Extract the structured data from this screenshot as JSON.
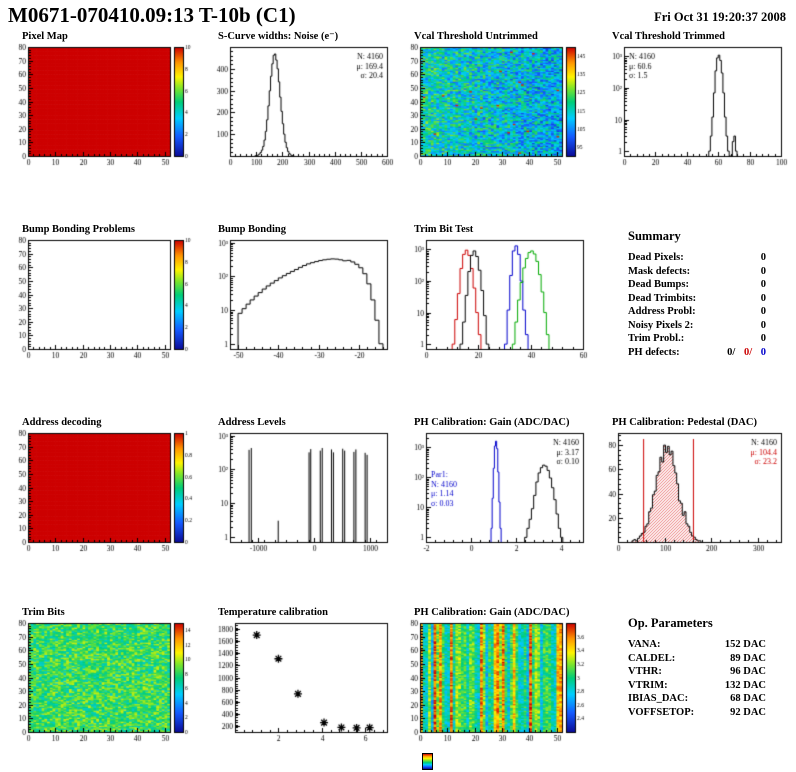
{
  "header": {
    "title": "M0671-070410.09:13 T-10b (C1)",
    "date": "Fri Oct 31 19:20:37 2008"
  },
  "summary": {
    "heading": "Summary",
    "rows": [
      {
        "label": "Dead Pixels:",
        "value": "0"
      },
      {
        "label": "Mask defects:",
        "value": "0"
      },
      {
        "label": "Dead Bumps:",
        "value": "0"
      },
      {
        "label": "Dead Trimbits:",
        "value": "0"
      },
      {
        "label": "Address Probl:",
        "value": "0"
      },
      {
        "label": "Noisy Pixels 2:",
        "value": "0"
      },
      {
        "label": "Trim Probl.:",
        "value": "0"
      }
    ],
    "ph_defects": {
      "label": "PH defects:",
      "values": [
        {
          "text": "0/",
          "color": "#000000"
        },
        {
          "text": "0/",
          "color": "#cc0000"
        },
        {
          "text": "0",
          "color": "#0000cc"
        }
      ]
    }
  },
  "op_parameters": {
    "heading": "Op. Parameters",
    "rows": [
      {
        "label": "VANA:",
        "value": "152 DAC"
      },
      {
        "label": "CALDEL:",
        "value": "89 DAC"
      },
      {
        "label": "VTHR:",
        "value": "96 DAC"
      },
      {
        "label": "VTRIM:",
        "value": "132 DAC"
      },
      {
        "label": "IBIAS_DAC:",
        "value": "68 DAC"
      },
      {
        "label": "VOFFSETOP:",
        "value": "92 DAC"
      }
    ]
  },
  "chart_data": [
    {
      "title": "Pixel Map",
      "type": "heatmap",
      "xlim": [
        0,
        52
      ],
      "xticks": [
        0,
        10,
        20,
        30,
        40,
        50
      ],
      "ylim": [
        0,
        80
      ],
      "yticks": [
        0,
        10,
        20,
        30,
        40,
        50,
        60,
        70,
        80
      ],
      "zlim": [
        0,
        10
      ],
      "zticks": [
        0,
        2,
        4,
        6,
        8,
        10
      ],
      "nx": 52,
      "ny": 80,
      "colorbar": true,
      "pattern": {
        "kind": "uniform",
        "value": 10
      }
    },
    {
      "title": "S-Curve widths: Noise (e⁻)",
      "type": "hist",
      "xlim": [
        0,
        600
      ],
      "xticks": [
        0,
        100,
        200,
        300,
        400,
        500,
        600
      ],
      "ylim": [
        0,
        500
      ],
      "yticks": [
        100,
        200,
        300,
        400
      ],
      "x0": 95,
      "step": 5,
      "counts": [
        1,
        2,
        4,
        9,
        16,
        27,
        44,
        73,
        113,
        166,
        230,
        299,
        366,
        423,
        462,
        468,
        440,
        400,
        340,
        270,
        205,
        148,
        100,
        63,
        38,
        21,
        11,
        5,
        2,
        1
      ],
      "stats": [
        {
          "pos": "tr",
          "lines": [
            "N: 4160",
            "μ: 169.4",
            "σ: 20.4"
          ],
          "colors": [
            "#000000",
            "#000000",
            "#000000"
          ]
        }
      ]
    },
    {
      "title": "Vcal Threshold Untrimmed",
      "type": "heatmap",
      "xlim": [
        0,
        52
      ],
      "xticks": [
        0,
        10,
        20,
        30,
        40,
        50
      ],
      "ylim": [
        0,
        80
      ],
      "yticks": [
        0,
        10,
        20,
        30,
        40,
        50,
        60,
        70,
        80
      ],
      "zlim": [
        90,
        150
      ],
      "zticks": [
        95,
        105,
        115,
        125,
        135,
        145
      ],
      "nx": 52,
      "ny": 80,
      "colorbar": true,
      "pattern": {
        "kind": "noise",
        "mean": 113,
        "spread": 13,
        "xgrad": -8,
        "outlier_prob": 0.004,
        "outlier_value": 148,
        "seed": 7
      }
    },
    {
      "title": "Vcal Threshold Trimmed",
      "type": "hist",
      "logy": true,
      "xlim": [
        0,
        100
      ],
      "xticks": [
        0,
        20,
        40,
        60,
        80,
        100
      ],
      "ylim": [
        0.7,
        2000
      ],
      "x0": 54,
      "step": 1,
      "counts": [
        1,
        3,
        12,
        70,
        350,
        900,
        1100,
        750,
        300,
        70,
        12,
        3,
        1,
        0,
        0,
        2,
        3,
        1
      ],
      "stats": [
        {
          "pos": "tl",
          "lines": [
            "N: 4160",
            "μ: 60.6",
            "σ: 1.5"
          ],
          "colors": [
            "#000000",
            "#000000",
            "#000000"
          ]
        }
      ]
    },
    {
      "title": "Bump Bonding Problems",
      "type": "heatmap",
      "xlim": [
        0,
        52
      ],
      "xticks": [
        0,
        10,
        20,
        30,
        40,
        50
      ],
      "ylim": [
        0,
        80
      ],
      "yticks": [
        0,
        10,
        20,
        30,
        40,
        50,
        60,
        70,
        80
      ],
      "zlim": [
        0,
        10
      ],
      "zticks": [
        0,
        2,
        4,
        6,
        8,
        10
      ],
      "nx": 52,
      "ny": 80,
      "colorbar": true,
      "pattern": {
        "kind": "empty"
      }
    },
    {
      "title": "Bump Bonding",
      "type": "hist",
      "logy": true,
      "xlim": [
        -52,
        -13
      ],
      "xticks": [
        -50,
        -40,
        -30,
        -20
      ],
      "ylim": [
        0.7,
        1200
      ],
      "x0": -50,
      "step": 1,
      "counts": [
        8,
        11,
        15,
        20,
        26,
        33,
        42,
        52,
        63,
        75,
        90,
        105,
        122,
        140,
        160,
        185,
        210,
        235,
        255,
        275,
        295,
        310,
        322,
        330,
        325,
        310,
        290,
        298,
        268,
        228,
        180,
        120,
        60,
        20,
        5,
        1
      ]
    },
    {
      "title": "Trim Bit Test",
      "type": "multihist",
      "logy": true,
      "xlim": [
        0,
        60
      ],
      "xticks": [
        0,
        20,
        40,
        60
      ],
      "ylim": [
        0.7,
        2000
      ],
      "series": [
        {
          "color": "#cc0000",
          "x0": 10,
          "step": 1,
          "counts": [
            1,
            6,
            40,
            250,
            700,
            950,
            650,
            250,
            60,
            10,
            2
          ]
        },
        {
          "color": "#000000",
          "x0": 13,
          "step": 1,
          "counts": [
            1,
            5,
            35,
            200,
            650,
            900,
            600,
            220,
            50,
            8,
            1
          ]
        },
        {
          "color": "#0000cc",
          "x0": 30,
          "step": 1,
          "counts": [
            1,
            12,
            150,
            900,
            1300,
            700,
            100,
            12,
            2
          ]
        },
        {
          "color": "#00aa00",
          "x0": 33,
          "step": 1,
          "counts": [
            1,
            5,
            25,
            90,
            260,
            520,
            800,
            900,
            720,
            420,
            160,
            45,
            10,
            2
          ]
        }
      ]
    },
    {
      "title": "Address decoding",
      "type": "heatmap",
      "xlim": [
        0,
        52
      ],
      "xticks": [
        0,
        10,
        20,
        30,
        40,
        50
      ],
      "ylim": [
        0,
        80
      ],
      "yticks": [
        0,
        10,
        20,
        30,
        40,
        50,
        60,
        70,
        80
      ],
      "zlim": [
        0,
        1
      ],
      "zticks": [
        0,
        0.2,
        0.4,
        0.6,
        0.8,
        1
      ],
      "nx": 52,
      "ny": 80,
      "colorbar": true,
      "pattern": {
        "kind": "uniform",
        "value": 1
      }
    },
    {
      "title": "Address Levels",
      "type": "spikes",
      "logy": true,
      "xlim": [
        -1500,
        1300
      ],
      "xticks": [
        -1000,
        0,
        1000
      ],
      "ylim": [
        0.7,
        1200
      ],
      "spikes": [
        [
          -1160,
          380
        ],
        [
          -1120,
          430
        ],
        [
          -640,
          3
        ],
        [
          -90,
          320
        ],
        [
          -60,
          400
        ],
        [
          110,
          360
        ],
        [
          145,
          430
        ],
        [
          310,
          390
        ],
        [
          345,
          320
        ],
        [
          510,
          410
        ],
        [
          545,
          360
        ],
        [
          710,
          330
        ],
        [
          745,
          390
        ],
        [
          910,
          310
        ],
        [
          945,
          270
        ]
      ]
    },
    {
      "title": "PH Calibration: Gain (ADC/DAC)",
      "type": "multihist",
      "logy": true,
      "xlim": [
        -2,
        5
      ],
      "xticks": [
        -2,
        0,
        2,
        4
      ],
      "ylim": [
        0.7,
        3000
      ],
      "series": [
        {
          "color": "#0000cc",
          "x0": 0.9,
          "step": 0.05,
          "counts": [
            2,
            20,
            200,
            1100,
            1600,
            900,
            150,
            15,
            2
          ]
        },
        {
          "color": "#000000",
          "x0": 2.4,
          "step": 0.1,
          "counts": [
            1,
            2,
            4,
            9,
            25,
            70,
            140,
            210,
            255,
            235,
            170,
            95,
            45,
            18,
            6,
            2,
            1
          ]
        }
      ],
      "stats": [
        {
          "pos": "tr",
          "lines": [
            "N: 4160",
            "μ: 3.17",
            "σ: 0.10"
          ],
          "colors": [
            "#000000",
            "#000000",
            "#000000"
          ]
        },
        {
          "pos": "ml",
          "lines": [
            "Par1:",
            "N: 4160",
            "μ: 1.14",
            "σ: 0.03"
          ],
          "colors": [
            "#0000cc",
            "#0000cc",
            "#0000cc",
            "#0000cc"
          ]
        }
      ]
    },
    {
      "title": "PH Calibration: Pedestal (DAC)",
      "type": "hist",
      "xlim": [
        0,
        350
      ],
      "xticks": [
        0,
        100,
        200,
        300
      ],
      "ylim": [
        0,
        90
      ],
      "yticks": [
        20,
        40,
        60,
        80
      ],
      "x0": 30,
      "step": 4,
      "fill": "red-hatch",
      "counts": [
        1,
        2,
        1,
        3,
        5,
        7,
        8,
        13,
        15,
        25,
        28,
        39,
        42,
        55,
        58,
        70,
        66,
        80,
        74,
        79,
        72,
        75,
        63,
        57,
        48,
        34,
        32,
        22,
        25,
        15,
        13,
        8,
        5,
        4,
        2,
        1,
        1
      ],
      "vlines": [
        {
          "x": 55,
          "color": "#cc0000"
        },
        {
          "x": 162,
          "color": "#cc0000"
        }
      ],
      "stats": [
        {
          "pos": "tr",
          "lines": [
            "N: 4160",
            "μ: 104.4",
            "σ: 23.2"
          ],
          "colors": [
            "#000000",
            "#cc0000",
            "#cc0000"
          ]
        }
      ]
    },
    {
      "title": "Trim Bits",
      "type": "heatmap",
      "xlim": [
        0,
        52
      ],
      "xticks": [
        0,
        10,
        20,
        30,
        40,
        50
      ],
      "ylim": [
        0,
        80
      ],
      "yticks": [
        0,
        10,
        20,
        30,
        40,
        50,
        60,
        70,
        80
      ],
      "zlim": [
        0,
        15
      ],
      "zticks": [
        0,
        2,
        4,
        6,
        8,
        10,
        12,
        14
      ],
      "nx": 52,
      "ny": 80,
      "colorbar": true,
      "pattern": {
        "kind": "noise",
        "mean": 8.2,
        "spread": 2.2,
        "seed": 11
      }
    },
    {
      "title": "Temperature calibration",
      "type": "scatter",
      "xlim": [
        0,
        7
      ],
      "xticks": [
        2,
        4,
        6
      ],
      "ylim": [
        100,
        1900
      ],
      "yticks": [
        200,
        400,
        600,
        800,
        1000,
        1200,
        1400,
        1600,
        1800
      ],
      "marker": "asterisk",
      "points": [
        [
          1,
          1700
        ],
        [
          2,
          1310
        ],
        [
          2.9,
          730
        ],
        [
          4.1,
          255
        ],
        [
          4.9,
          175
        ],
        [
          5.6,
          168
        ],
        [
          6.2,
          172
        ]
      ]
    },
    {
      "title": "PH Calibration: Gain (ADC/DAC)",
      "type": "heatmap",
      "xlim": [
        0,
        52
      ],
      "xticks": [
        0,
        10,
        20,
        30,
        40,
        50
      ],
      "ylim": [
        0,
        80
      ],
      "yticks": [
        0,
        10,
        20,
        30,
        40,
        50,
        60,
        70,
        80
      ],
      "zlim": [
        2.2,
        3.8
      ],
      "zticks": [
        2.4,
        2.6,
        2.8,
        3,
        3.2,
        3.4,
        3.6
      ],
      "nx": 52,
      "ny": 80,
      "colorbar": true,
      "pattern": {
        "kind": "colnoise",
        "mean": 3.0,
        "col_spread": 0.25,
        "cell_spread": 0.18,
        "hot_prob": 0.18,
        "hot_value": 3.55,
        "seed": 23
      }
    }
  ]
}
